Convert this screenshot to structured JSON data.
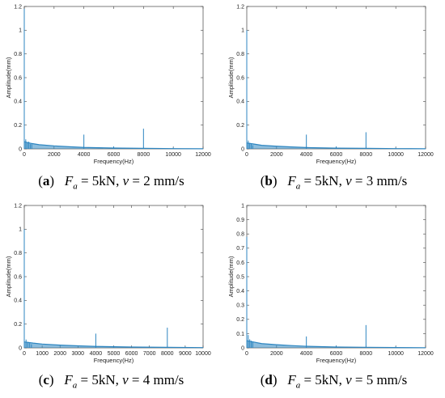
{
  "colors": {
    "series": "#2e86c1",
    "axis": "#444444"
  },
  "chart_data": [
    {
      "type": "line",
      "panel_letter": "a",
      "caption_text": "F_a = 5kN, v = 2 mm/s",
      "xlabel": "Frequency(Hz)",
      "ylabel": "Amplitude(mm)",
      "xlim": [
        0,
        12000
      ],
      "ylim": [
        0,
        1.2
      ],
      "xticks": [
        0,
        2000,
        4000,
        6000,
        8000,
        10000,
        12000
      ],
      "yticks": [
        0,
        0.2,
        0.4,
        0.6,
        0.8,
        1,
        1.2
      ],
      "ytick_labels": [
        "0",
        "0.2",
        "0.4",
        "0.6",
        "0.8",
        "1",
        "1.2"
      ],
      "spikes": [
        [
          0,
          1.18
        ],
        [
          100,
          0.08
        ],
        [
          200,
          0.05
        ],
        [
          300,
          0.06
        ],
        [
          400,
          0.04
        ],
        [
          500,
          0.04
        ],
        [
          4000,
          0.12
        ],
        [
          6000,
          0.02
        ],
        [
          8000,
          0.17
        ],
        [
          10000,
          0.01
        ]
      ],
      "baseline": [
        [
          0,
          0.06
        ],
        [
          500,
          0.045
        ],
        [
          1000,
          0.035
        ],
        [
          2000,
          0.025
        ],
        [
          3000,
          0.018
        ],
        [
          4000,
          0.012
        ],
        [
          6000,
          0.007
        ],
        [
          8000,
          0.004
        ],
        [
          10000,
          0.002
        ],
        [
          12000,
          0.001
        ]
      ]
    },
    {
      "type": "line",
      "panel_letter": "b",
      "caption_text": "F_a = 5kN, v = 3 mm/s",
      "xlabel": "Frequency(Hz)",
      "ylabel": "Amplitude(mm)",
      "xlim": [
        0,
        12000
      ],
      "ylim": [
        0,
        1.2
      ],
      "xticks": [
        0,
        2000,
        4000,
        6000,
        8000,
        10000,
        12000
      ],
      "yticks": [
        0,
        0.2,
        0.4,
        0.6,
        0.8,
        1,
        1.2
      ],
      "ytick_labels": [
        "0",
        "0.2",
        "0.4",
        "0.6",
        "0.8",
        "1",
        "1.2"
      ],
      "spikes": [
        [
          0,
          1.0
        ],
        [
          100,
          0.07
        ],
        [
          200,
          0.05
        ],
        [
          300,
          0.04
        ],
        [
          400,
          0.03
        ],
        [
          4000,
          0.12
        ],
        [
          6000,
          0.02
        ],
        [
          8000,
          0.14
        ],
        [
          10000,
          0.01
        ]
      ],
      "baseline": [
        [
          0,
          0.05
        ],
        [
          500,
          0.04
        ],
        [
          1000,
          0.03
        ],
        [
          2000,
          0.022
        ],
        [
          3000,
          0.016
        ],
        [
          4000,
          0.011
        ],
        [
          6000,
          0.006
        ],
        [
          8000,
          0.004
        ],
        [
          10000,
          0.002
        ],
        [
          12000,
          0.001
        ]
      ]
    },
    {
      "type": "line",
      "panel_letter": "c",
      "caption_text": "F_a = 5kN, v = 4 mm/s",
      "xlabel": "Frequency(Hz)",
      "ylabel": "Amplitude(mm)",
      "xlim": [
        0,
        10000
      ],
      "ylim": [
        0,
        1.2
      ],
      "xticks": [
        0,
        1000,
        2000,
        3000,
        4000,
        5000,
        6000,
        7000,
        8000,
        9000,
        10000
      ],
      "yticks": [
        0,
        0.2,
        0.4,
        0.6,
        0.8,
        1,
        1.2
      ],
      "ytick_labels": [
        "0",
        "0.2",
        "0.4",
        "0.6",
        "0.8",
        "1",
        "1.2"
      ],
      "spikes": [
        [
          0,
          1.0
        ],
        [
          100,
          0.07
        ],
        [
          200,
          0.05
        ],
        [
          300,
          0.04
        ],
        [
          400,
          0.03
        ],
        [
          4000,
          0.12
        ],
        [
          5000,
          0.015
        ],
        [
          8000,
          0.17
        ],
        [
          9000,
          0.01
        ]
      ],
      "baseline": [
        [
          0,
          0.05
        ],
        [
          500,
          0.04
        ],
        [
          1000,
          0.032
        ],
        [
          2000,
          0.023
        ],
        [
          3000,
          0.017
        ],
        [
          4000,
          0.012
        ],
        [
          6000,
          0.007
        ],
        [
          8000,
          0.004
        ],
        [
          10000,
          0.002
        ]
      ]
    },
    {
      "type": "line",
      "panel_letter": "d",
      "caption_text": "F_a = 5kN, v = 5 mm/s",
      "xlabel": "Frequency(Hz)",
      "ylabel": "Amplitude(mm)",
      "xlim": [
        0,
        12000
      ],
      "ylim": [
        0,
        1
      ],
      "xticks": [
        0,
        2000,
        4000,
        6000,
        8000,
        10000,
        12000
      ],
      "yticks": [
        0,
        0.1,
        0.2,
        0.3,
        0.4,
        0.5,
        0.6,
        0.7,
        0.8,
        0.9,
        1
      ],
      "ytick_labels": [
        "0",
        "0.1",
        "0.2",
        "0.3",
        "0.4",
        "0.5",
        "0.6",
        "0.7",
        "0.8",
        "0.9",
        "1"
      ],
      "spikes": [
        [
          0,
          0.78
        ],
        [
          100,
          0.09
        ],
        [
          200,
          0.06
        ],
        [
          300,
          0.05
        ],
        [
          400,
          0.04
        ],
        [
          4000,
          0.08
        ],
        [
          6000,
          0.015
        ],
        [
          8000,
          0.16
        ],
        [
          10000,
          0.01
        ]
      ],
      "baseline": [
        [
          0,
          0.05
        ],
        [
          500,
          0.04
        ],
        [
          1000,
          0.03
        ],
        [
          2000,
          0.022
        ],
        [
          3000,
          0.016
        ],
        [
          4000,
          0.011
        ],
        [
          6000,
          0.006
        ],
        [
          8000,
          0.004
        ],
        [
          10000,
          0.002
        ],
        [
          12000,
          0.001
        ]
      ]
    }
  ]
}
